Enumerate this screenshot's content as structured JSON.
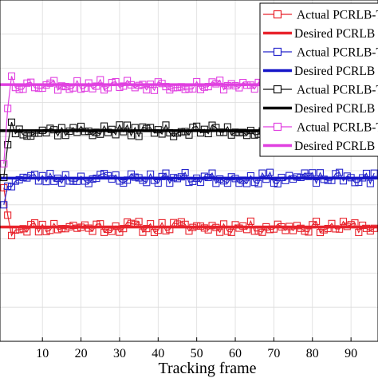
{
  "chart_data": {
    "type": "line",
    "xlabel": "Tracking frame",
    "ylabel": "",
    "xlim": [
      -1,
      97
    ],
    "xticks": [
      10,
      20,
      30,
      40,
      50,
      60,
      70,
      80,
      90
    ],
    "xtick_labels": [
      "10",
      "20",
      "30",
      "40",
      "50",
      "60",
      "70",
      "80",
      "90"
    ],
    "ylim": [
      0,
      100
    ],
    "grid": true,
    "legend_position": "top-right",
    "series": [
      {
        "name": "Actual PCRLB-T",
        "kind": "actual",
        "color": "#e8232c",
        "marker": "square",
        "level": 33.5,
        "start": 45,
        "seed": 11
      },
      {
        "name": "Desired PCRLB",
        "kind": "desired",
        "color": "#e8232c",
        "level": 33.5
      },
      {
        "name": "Actual PCRLB-T",
        "kind": "actual",
        "color": "#2626cc",
        "marker": "square",
        "level": 47.8,
        "start": 40,
        "seed": 23
      },
      {
        "name": "Desired PCRLB",
        "kind": "desired",
        "color": "#1515c8",
        "level": 47.8
      },
      {
        "name": "Actual PCRLB-T",
        "kind": "actual",
        "color": "#111111",
        "marker": "square",
        "level": 61.7,
        "start": 48,
        "seed": 37
      },
      {
        "name": "Desired PCRLB",
        "kind": "desired",
        "color": "#000000",
        "level": 61.7
      },
      {
        "name": "Actual PCRLB-T",
        "kind": "actual",
        "color": "#e040e0",
        "marker": "square",
        "level": 75.2,
        "start": 52,
        "seed": 53
      },
      {
        "name": "Desired PCRLB",
        "kind": "desired",
        "color": "#e040e0",
        "level": 75.2
      }
    ]
  }
}
